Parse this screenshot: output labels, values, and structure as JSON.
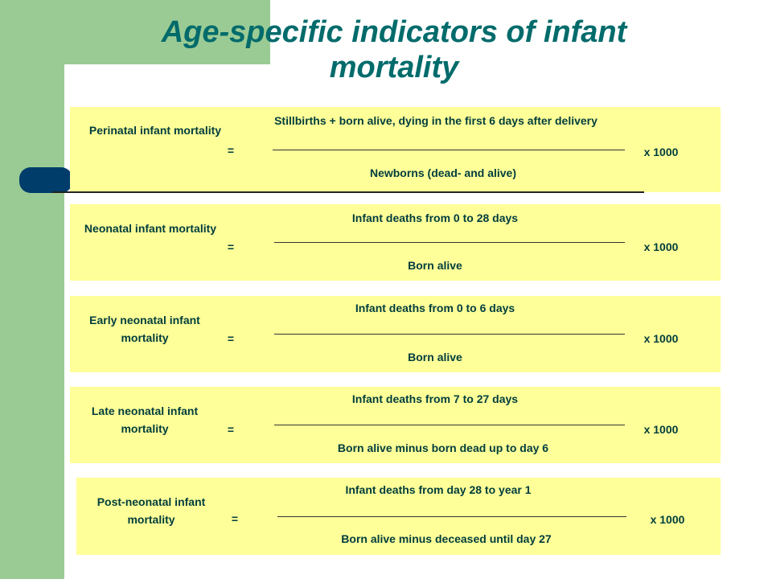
{
  "title": "Age-specific indicators of infant mortality",
  "rows": [
    {
      "label": "Perinatal infant mortality",
      "equals": "=",
      "numerator": "Stillbirths + born alive, dying in the first 6 days after delivery",
      "denominator": "Newborns (dead- and alive)",
      "multiplier": "x 1000"
    },
    {
      "label": "Neonatal infant mortality",
      "equals": "=",
      "numerator": "Infant deaths from 0 to 28 days",
      "denominator": "Born alive",
      "multiplier": "x 1000"
    },
    {
      "label": "Early neonatal infant mortality",
      "equals": "=",
      "numerator": "Infant deaths from 0 to 6 days",
      "denominator": "Born alive",
      "multiplier": "x 1000"
    },
    {
      "label": "Late neonatal infant mortality",
      "equals": "=",
      "numerator": "Infant deaths from 7 to 27 days",
      "denominator": "Born alive minus born dead up to day 6",
      "multiplier": "x 1000"
    },
    {
      "label": "Post-neonatal infant mortality",
      "equals": "=",
      "numerator": "Infant deaths from day 28 to year 1",
      "denominator": "Born alive minus deceased until day 27",
      "multiplier": "x 1000"
    }
  ],
  "colors": {
    "title": "#006b6b",
    "box": "#ffff99",
    "green_decor": "#9bcb95",
    "navy_decor": "#003d6b"
  }
}
